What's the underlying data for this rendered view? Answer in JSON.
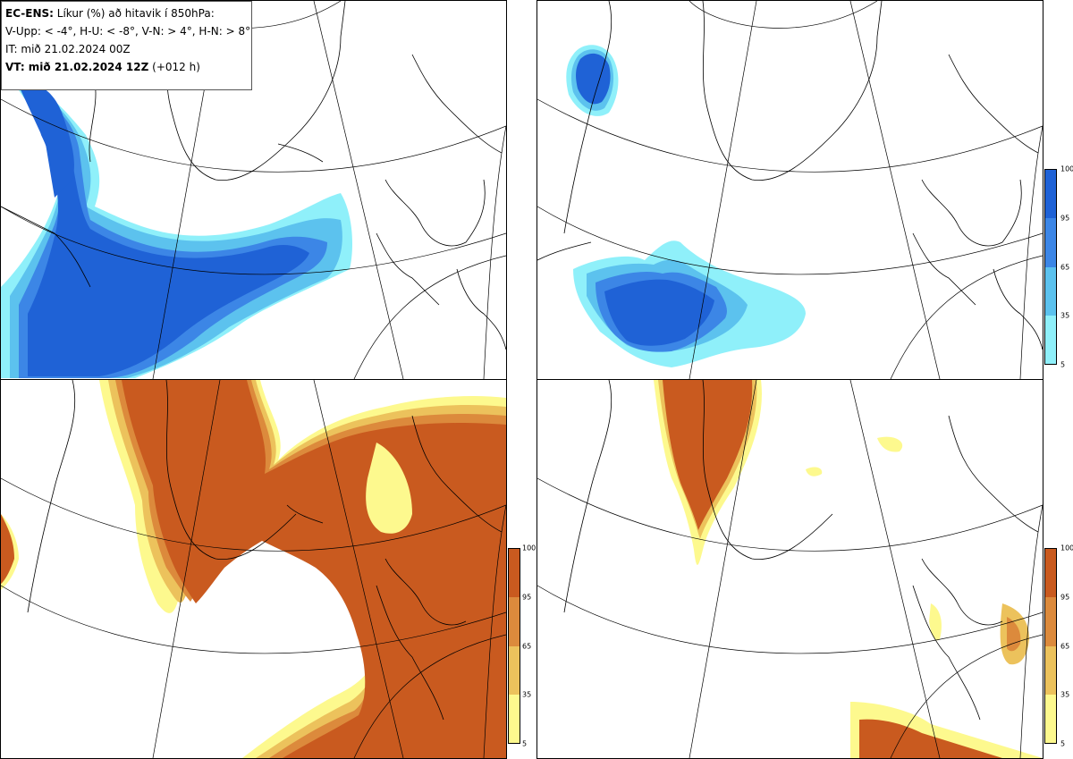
{
  "info": {
    "title_bold": "EC-ENS:",
    "title_rest": " Líkur (%) að hitavik í 850hPa:",
    "thresholds": "V-Upp: < -4°, H-U: < -8°, V-N: > 4°, H-N: > 8°",
    "issue_time": "IT: mið 21.02.2024 00Z",
    "valid_time_bold": "VT: mið 21.02.2024 12Z",
    "valid_time_rest": " (+012 h)"
  },
  "colorbars": {
    "cold": {
      "ticks": [
        "100",
        "95",
        "65",
        "35",
        "5"
      ],
      "colors": [
        "#1f62d6",
        "#3c86e6",
        "#5cc2ee",
        "#8ff0fa"
      ]
    },
    "warm": {
      "ticks": [
        "100",
        "95",
        "65",
        "35",
        "5"
      ],
      "colors": [
        "#c95a1f",
        "#dc8a3c",
        "#ecc25c",
        "#fdf98e"
      ]
    }
  },
  "panels": [
    "V-Upp",
    "H-U",
    "V-N",
    "H-N"
  ]
}
